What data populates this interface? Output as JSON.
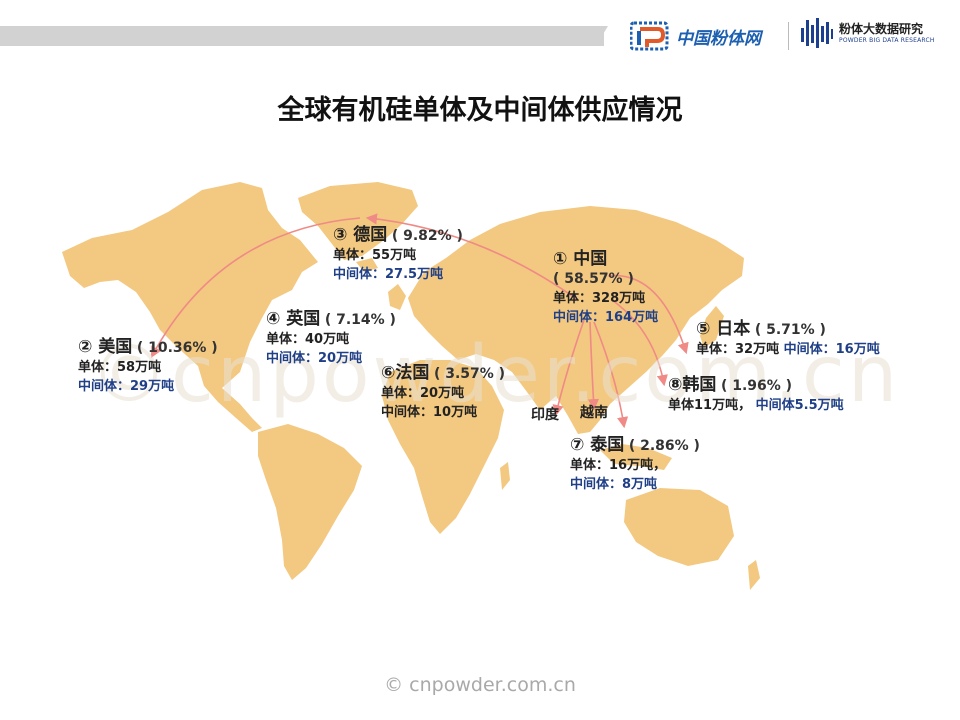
{
  "title": "全球有机硅单体及中间体供应情况",
  "header": {
    "logo1_text": "中国粉体网",
    "logo2_cn": "粉体大数据研究",
    "logo2_en": "POWDER BIG DATA RESEARCH"
  },
  "colors": {
    "land": "#f3c880",
    "arrow": "#ef8a86",
    "accent_blue": "#1f3f86",
    "logo_blue": "#1d5fb0"
  },
  "watermark": "©cnpowder.com.cn",
  "footer": "© cnpowder.com.cn",
  "regions": {
    "china": {
      "head": "① 中国",
      "pct": "( 58.57% )",
      "mono": "单体：328万吨",
      "mid": "中间体：164万吨"
    },
    "usa": {
      "head": "② 美国",
      "pct": "( 10.36% )",
      "mono": "单体：58万吨",
      "mid": "中间体：29万吨"
    },
    "germany": {
      "head": "③ 德国",
      "pct": "( 9.82% )",
      "mono": "单体：55万吨",
      "mid": "中间体：27.5万吨"
    },
    "uk": {
      "head": "④ 英国",
      "pct": "( 7.14% )",
      "mono": "单体：40万吨",
      "mid": "中间体：20万吨"
    },
    "japan": {
      "head": "⑤ 日本",
      "pct": "( 5.71% )",
      "mono": "单体：32万吨",
      "mid": "中间体：16万吨"
    },
    "france": {
      "head": "⑥法国",
      "pct": "( 3.57% )",
      "mono": "单体：20万吨",
      "mid": "中间体：10万吨"
    },
    "thailand": {
      "head": "⑦ 泰国",
      "pct": "( 2.86% )",
      "mono": "单体：16万吨，",
      "mid": "中间体：8万吨"
    },
    "korea": {
      "head": "⑧韩国",
      "pct": "( 1.96% )",
      "mono": "单体11万吨，",
      "mid": "中间体5.5万吨"
    }
  },
  "places": {
    "india": "印度",
    "vietnam": "越南"
  }
}
